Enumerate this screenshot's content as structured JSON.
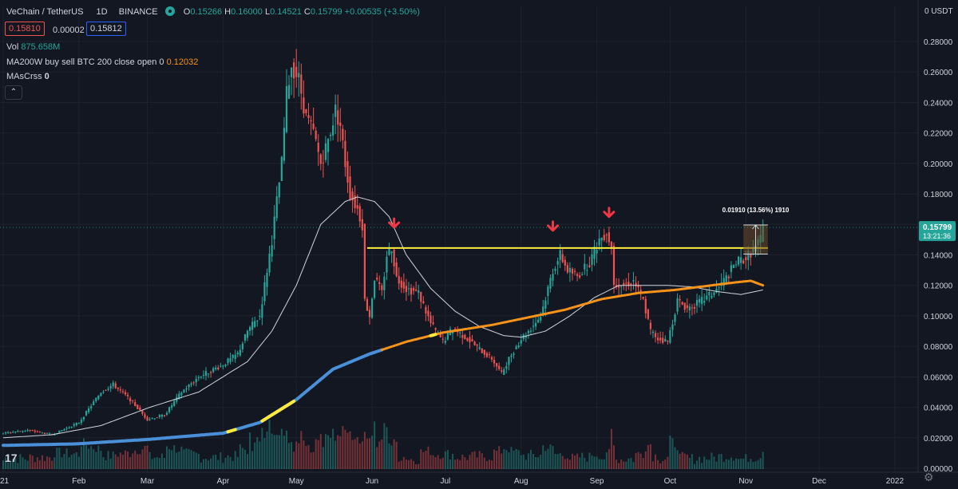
{
  "header": {
    "symbol": "VeChain / TetherUS",
    "interval": "1D",
    "exchange": "BINANCE",
    "open_label": "O",
    "open": "0.15266",
    "high_label": "H",
    "high": "0.16000",
    "low_label": "L",
    "low": "0.14521",
    "close_label": "C",
    "close": "0.15799",
    "change": "+0.00535 (+3.50%)"
  },
  "trade": {
    "bid": "0.15810",
    "spread": "0.00002",
    "ask": "0.15812"
  },
  "indicators": {
    "vol_label": "Vol",
    "vol_value": "875.658M",
    "ma_label": "MA200W buy sell BTC 200 close open 0",
    "ma_value": "0.12032",
    "macross_label": "MAsCrss",
    "macross_value": "0"
  },
  "collapse_icon": "chevron-up-icon",
  "tv_logo": "17",
  "settings_icon": "gear-icon",
  "colors": {
    "background": "#131722",
    "up": "#26a69a",
    "down": "#ef5350",
    "resistance": "#ffeb3b",
    "ma_orange": "#f7931a",
    "ma_blue": "#4a90d9",
    "ma_white": "#d1d4dc",
    "arrow": "#f23645"
  },
  "chart_data": {
    "type": "candlestick",
    "price_axis": {
      "unit": "USDT",
      "unit_label": "0 USDT",
      "ticks": [
        "0.28000",
        "0.26000",
        "0.24000",
        "0.22000",
        "0.20000",
        "0.18000",
        "0.16000",
        "0.14000",
        "0.12000",
        "0.10000",
        "0.08000",
        "0.06000",
        "0.04000",
        "0.02000",
        "0.00000"
      ],
      "range": [
        0.0,
        0.29
      ]
    },
    "time_axis": {
      "ticks": [
        "21",
        "Feb",
        "Mar",
        "Apr",
        "May",
        "Jun",
        "Jul",
        "Aug",
        "Sep",
        "Oct",
        "Nov",
        "Dec",
        "2022"
      ],
      "day_of_tick": [
        0,
        31,
        59,
        90,
        120,
        151,
        181,
        212,
        243,
        273,
        304,
        334,
        365
      ]
    },
    "last_price": {
      "value": "0.15799",
      "countdown": "13:21:36"
    },
    "price_anchors": [
      [
        0,
        0.023
      ],
      [
        10,
        0.025
      ],
      [
        20,
        0.022
      ],
      [
        31,
        0.03
      ],
      [
        40,
        0.05
      ],
      [
        45,
        0.055
      ],
      [
        52,
        0.045
      ],
      [
        59,
        0.032
      ],
      [
        66,
        0.035
      ],
      [
        73,
        0.05
      ],
      [
        80,
        0.06
      ],
      [
        90,
        0.068
      ],
      [
        96,
        0.075
      ],
      [
        100,
        0.09
      ],
      [
        105,
        0.1
      ],
      [
        110,
        0.15
      ],
      [
        114,
        0.2
      ],
      [
        116,
        0.245
      ],
      [
        118,
        0.265
      ],
      [
        121,
        0.255
      ],
      [
        124,
        0.23
      ],
      [
        127,
        0.22
      ],
      [
        130,
        0.2
      ],
      [
        133,
        0.215
      ],
      [
        136,
        0.235
      ],
      [
        138,
        0.225
      ],
      [
        140,
        0.2
      ],
      [
        142,
        0.18
      ],
      [
        145,
        0.17
      ],
      [
        147,
        0.16
      ],
      [
        148,
        0.11
      ],
      [
        150,
        0.1
      ],
      [
        152,
        0.125
      ],
      [
        155,
        0.115
      ],
      [
        157,
        0.14
      ],
      [
        159,
        0.145
      ],
      [
        161,
        0.125
      ],
      [
        165,
        0.118
      ],
      [
        170,
        0.115
      ],
      [
        175,
        0.095
      ],
      [
        180,
        0.083
      ],
      [
        184,
        0.092
      ],
      [
        190,
        0.085
      ],
      [
        195,
        0.078
      ],
      [
        200,
        0.072
      ],
      [
        204,
        0.062
      ],
      [
        207,
        0.072
      ],
      [
        212,
        0.085
      ],
      [
        215,
        0.09
      ],
      [
        220,
        0.1
      ],
      [
        225,
        0.13
      ],
      [
        228,
        0.14
      ],
      [
        231,
        0.13
      ],
      [
        235,
        0.126
      ],
      [
        240,
        0.135
      ],
      [
        244,
        0.15
      ],
      [
        247,
        0.155
      ],
      [
        249,
        0.145
      ],
      [
        250,
        0.122
      ],
      [
        254,
        0.12
      ],
      [
        258,
        0.123
      ],
      [
        262,
        0.11
      ],
      [
        265,
        0.09
      ],
      [
        268,
        0.085
      ],
      [
        272,
        0.083
      ],
      [
        276,
        0.11
      ],
      [
        280,
        0.105
      ],
      [
        284,
        0.108
      ],
      [
        288,
        0.112
      ],
      [
        292,
        0.117
      ],
      [
        296,
        0.125
      ],
      [
        300,
        0.135
      ],
      [
        304,
        0.138
      ],
      [
        308,
        0.145
      ],
      [
        310,
        0.15
      ],
      [
        311,
        0.158
      ]
    ],
    "ma200w_anchors": [
      [
        0,
        0.015
      ],
      [
        30,
        0.016
      ],
      [
        60,
        0.019
      ],
      [
        90,
        0.023
      ],
      [
        105,
        0.03
      ],
      [
        120,
        0.045
      ],
      [
        135,
        0.065
      ],
      [
        150,
        0.075
      ],
      [
        165,
        0.083
      ],
      [
        180,
        0.089
      ],
      [
        200,
        0.094
      ],
      [
        215,
        0.099
      ],
      [
        230,
        0.104
      ],
      [
        245,
        0.111
      ],
      [
        260,
        0.115
      ],
      [
        275,
        0.117
      ],
      [
        290,
        0.12
      ],
      [
        300,
        0.122
      ],
      [
        306,
        0.123
      ],
      [
        311,
        0.12
      ]
    ],
    "ma200w_yellow_day_ranges": [
      [
        92,
        95
      ],
      [
        106,
        119
      ],
      [
        175,
        177
      ]
    ],
    "ma_white_anchors": [
      [
        0,
        0.02
      ],
      [
        20,
        0.022
      ],
      [
        40,
        0.028
      ],
      [
        60,
        0.04
      ],
      [
        80,
        0.05
      ],
      [
        100,
        0.07
      ],
      [
        110,
        0.09
      ],
      [
        120,
        0.12
      ],
      [
        130,
        0.16
      ],
      [
        140,
        0.175
      ],
      [
        145,
        0.178
      ],
      [
        152,
        0.175
      ],
      [
        158,
        0.165
      ],
      [
        165,
        0.14
      ],
      [
        175,
        0.118
      ],
      [
        185,
        0.103
      ],
      [
        195,
        0.093
      ],
      [
        205,
        0.087
      ],
      [
        212,
        0.086
      ],
      [
        222,
        0.09
      ],
      [
        232,
        0.1
      ],
      [
        242,
        0.112
      ],
      [
        252,
        0.12
      ],
      [
        262,
        0.12
      ],
      [
        272,
        0.12
      ],
      [
        282,
        0.119
      ],
      [
        292,
        0.116
      ],
      [
        302,
        0.114
      ],
      [
        311,
        0.117
      ]
    ],
    "resistance_line": {
      "price": 0.1445,
      "from_day": 149,
      "to_day": 313
    },
    "down_arrows": [
      {
        "day": 160,
        "price": 0.158
      },
      {
        "day": 225,
        "price": 0.156
      },
      {
        "day": 248,
        "price": 0.165
      }
    ],
    "measure_box": {
      "from_day": 303,
      "to_day": 313,
      "from_price": 0.1405,
      "to_price": 0.1596,
      "label": "0.01910 (13.56%) 1910"
    }
  }
}
